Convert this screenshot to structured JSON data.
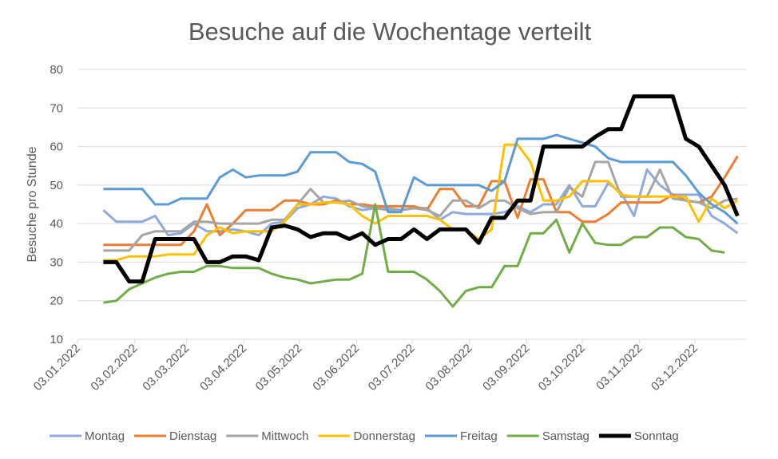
{
  "chart_data": {
    "type": "line",
    "title": "Besuche auf die Wochentage verteilt",
    "y_label": "Besuche pro Stunde",
    "x": [
      "2022-01-17",
      "2022-01-24",
      "2022-01-31",
      "2022-02-07",
      "2022-02-14",
      "2022-02-21",
      "2022-02-28",
      "2022-03-07",
      "2022-03-14",
      "2022-03-21",
      "2022-03-28",
      "2022-04-04",
      "2022-04-11",
      "2022-04-18",
      "2022-04-25",
      "2022-05-02",
      "2022-05-09",
      "2022-05-16",
      "2022-05-23",
      "2022-05-30",
      "2022-06-06",
      "2022-06-13",
      "2022-06-20",
      "2022-06-27",
      "2022-07-04",
      "2022-07-11",
      "2022-07-18",
      "2022-07-25",
      "2022-08-01",
      "2022-08-08",
      "2022-08-15",
      "2022-08-22",
      "2022-08-29",
      "2022-09-05",
      "2022-09-12",
      "2022-09-19",
      "2022-09-26",
      "2022-10-03",
      "2022-10-10",
      "2022-10-17",
      "2022-10-24",
      "2022-10-31",
      "2022-11-07",
      "2022-11-14",
      "2022-11-21",
      "2022-11-28",
      "2022-12-05",
      "2022-12-12",
      "2022-12-19",
      "2022-12-26"
    ],
    "xlim": [
      "2022-01-03",
      "2022-12-31"
    ],
    "xticks": [
      {
        "value": "2022-01-03",
        "label": "03.01.2022"
      },
      {
        "value": "2022-02-03",
        "label": "03.02.2022"
      },
      {
        "value": "2022-03-03",
        "label": "03.03.2022"
      },
      {
        "value": "2022-04-03",
        "label": "03.04.2022"
      },
      {
        "value": "2022-05-03",
        "label": "03.05.2022"
      },
      {
        "value": "2022-06-03",
        "label": "03.06.2022"
      },
      {
        "value": "2022-07-03",
        "label": "03.07.2022"
      },
      {
        "value": "2022-08-03",
        "label": "03.08.2022"
      },
      {
        "value": "2022-09-03",
        "label": "03.09.2022"
      },
      {
        "value": "2022-10-03",
        "label": "03.10.2022"
      },
      {
        "value": "2022-11-03",
        "label": "03.11.2022"
      },
      {
        "value": "2022-12-03",
        "label": "03.12.2022"
      }
    ],
    "ylim": [
      10,
      80
    ],
    "yticks": [
      10,
      20,
      30,
      40,
      50,
      60,
      70,
      80
    ],
    "grid": true,
    "legend": "bottom",
    "series": [
      {
        "name": "Montag",
        "color": "#8faadc",
        "width": 3,
        "values": [
          43.5,
          40.5,
          40.5,
          40.5,
          42,
          37,
          37.5,
          40,
          38,
          38,
          38.5,
          38,
          37,
          40,
          40.5,
          44,
          45,
          47,
          46.5,
          44.5,
          43.5,
          44,
          44,
          43.5,
          44,
          44,
          41,
          43,
          42.5,
          42.5,
          42.5,
          43,
          44.5,
          43,
          45,
          45,
          50,
          44.5,
          44.5,
          50.5,
          48,
          42,
          54,
          50,
          47.5,
          47.5,
          47.5,
          42,
          40,
          37.5
        ]
      },
      {
        "name": "Dienstag",
        "color": "#ed7d31",
        "width": 3,
        "values": [
          34.5,
          34.5,
          34.5,
          34.5,
          34.5,
          34.5,
          34.5,
          38,
          45,
          37,
          40,
          43.5,
          43.5,
          43.5,
          46,
          46,
          45,
          45,
          46,
          45,
          45,
          44.5,
          44.5,
          44.5,
          44.5,
          43.5,
          49,
          49,
          44.5,
          44.5,
          51,
          51,
          41.5,
          51.5,
          51.5,
          43,
          43,
          40.5,
          40.5,
          42.5,
          45.5,
          45.5,
          45.5,
          45.5,
          47.5,
          46,
          45.5,
          47,
          52,
          57.5
        ]
      },
      {
        "name": "Mittwoch",
        "color": "#a5a5a5",
        "width": 3,
        "values": [
          33,
          33,
          33,
          37,
          38,
          38,
          38,
          40.5,
          40.5,
          40,
          40,
          40,
          40,
          41,
          41,
          45,
          49,
          45.5,
          45.5,
          46,
          44.5,
          44,
          43.5,
          43.5,
          44,
          43.5,
          42,
          46,
          46,
          44,
          46,
          46,
          44,
          42.5,
          43,
          43,
          49.5,
          47,
          56,
          56,
          47,
          47,
          47,
          54,
          46.5,
          46,
          45.5,
          44,
          46,
          46.5
        ]
      },
      {
        "name": "Donnerstag",
        "color": "#ffc000",
        "width": 3,
        "values": [
          30.5,
          30.5,
          31.5,
          31.5,
          31.5,
          32,
          32,
          32,
          37,
          39,
          37.5,
          38,
          38,
          38,
          40.5,
          45,
          45,
          45.5,
          45.5,
          45,
          42,
          40,
          42,
          42,
          42,
          42,
          41,
          38.5,
          38.5,
          36,
          38.5,
          60.5,
          60.5,
          56,
          46,
          46,
          47,
          51,
          51,
          51,
          47.5,
          47,
          47,
          47,
          47,
          47,
          40.5,
          46.5,
          44,
          46
        ]
      },
      {
        "name": "Freitag",
        "color": "#5b9bd5",
        "width": 3,
        "values": [
          49,
          49,
          49,
          49,
          45,
          45,
          46.5,
          46.5,
          46.5,
          52,
          54,
          52,
          52.5,
          52.5,
          52.5,
          53.5,
          58.5,
          58.5,
          58.5,
          56,
          55.5,
          53.5,
          43,
          43,
          52,
          50,
          50,
          50,
          50,
          50,
          48.5,
          51,
          62,
          62,
          62,
          63,
          62,
          61,
          60,
          57,
          56,
          56,
          56,
          56,
          56,
          52.5,
          48,
          45,
          43,
          40
        ]
      },
      {
        "name": "Samstag",
        "color": "#70ad47",
        "width": 3,
        "values": [
          19.5,
          20,
          23,
          24.5,
          26,
          27,
          27.5,
          27.5,
          29,
          29,
          28.5,
          28.5,
          28.5,
          27,
          26,
          25.5,
          24.5,
          25,
          25.5,
          25.5,
          27,
          45,
          27.5,
          27.5,
          27.5,
          25.5,
          22.5,
          18.5,
          22.5,
          23.5,
          23.5,
          29,
          29,
          37.5,
          37.5,
          41,
          32.5,
          40,
          35,
          34.5,
          34.5,
          36.5,
          36.5,
          39,
          39,
          36.5,
          36,
          33,
          32.5,
          null
        ]
      },
      {
        "name": "Sonntag",
        "color": "#000000",
        "width": 5,
        "values": [
          30,
          30,
          25,
          25,
          36,
          36,
          36,
          36,
          30,
          30,
          31.5,
          31.5,
          30.5,
          39,
          39.5,
          38.5,
          36.5,
          37.5,
          37.5,
          36,
          37.5,
          34.5,
          36,
          36,
          38.5,
          36,
          38.5,
          38.5,
          38.5,
          35,
          41.5,
          41.5,
          46,
          46,
          60,
          60,
          60,
          60,
          62.5,
          64.5,
          64.5,
          73,
          73,
          73,
          73,
          62,
          60,
          55,
          50,
          42
        ]
      }
    ]
  }
}
